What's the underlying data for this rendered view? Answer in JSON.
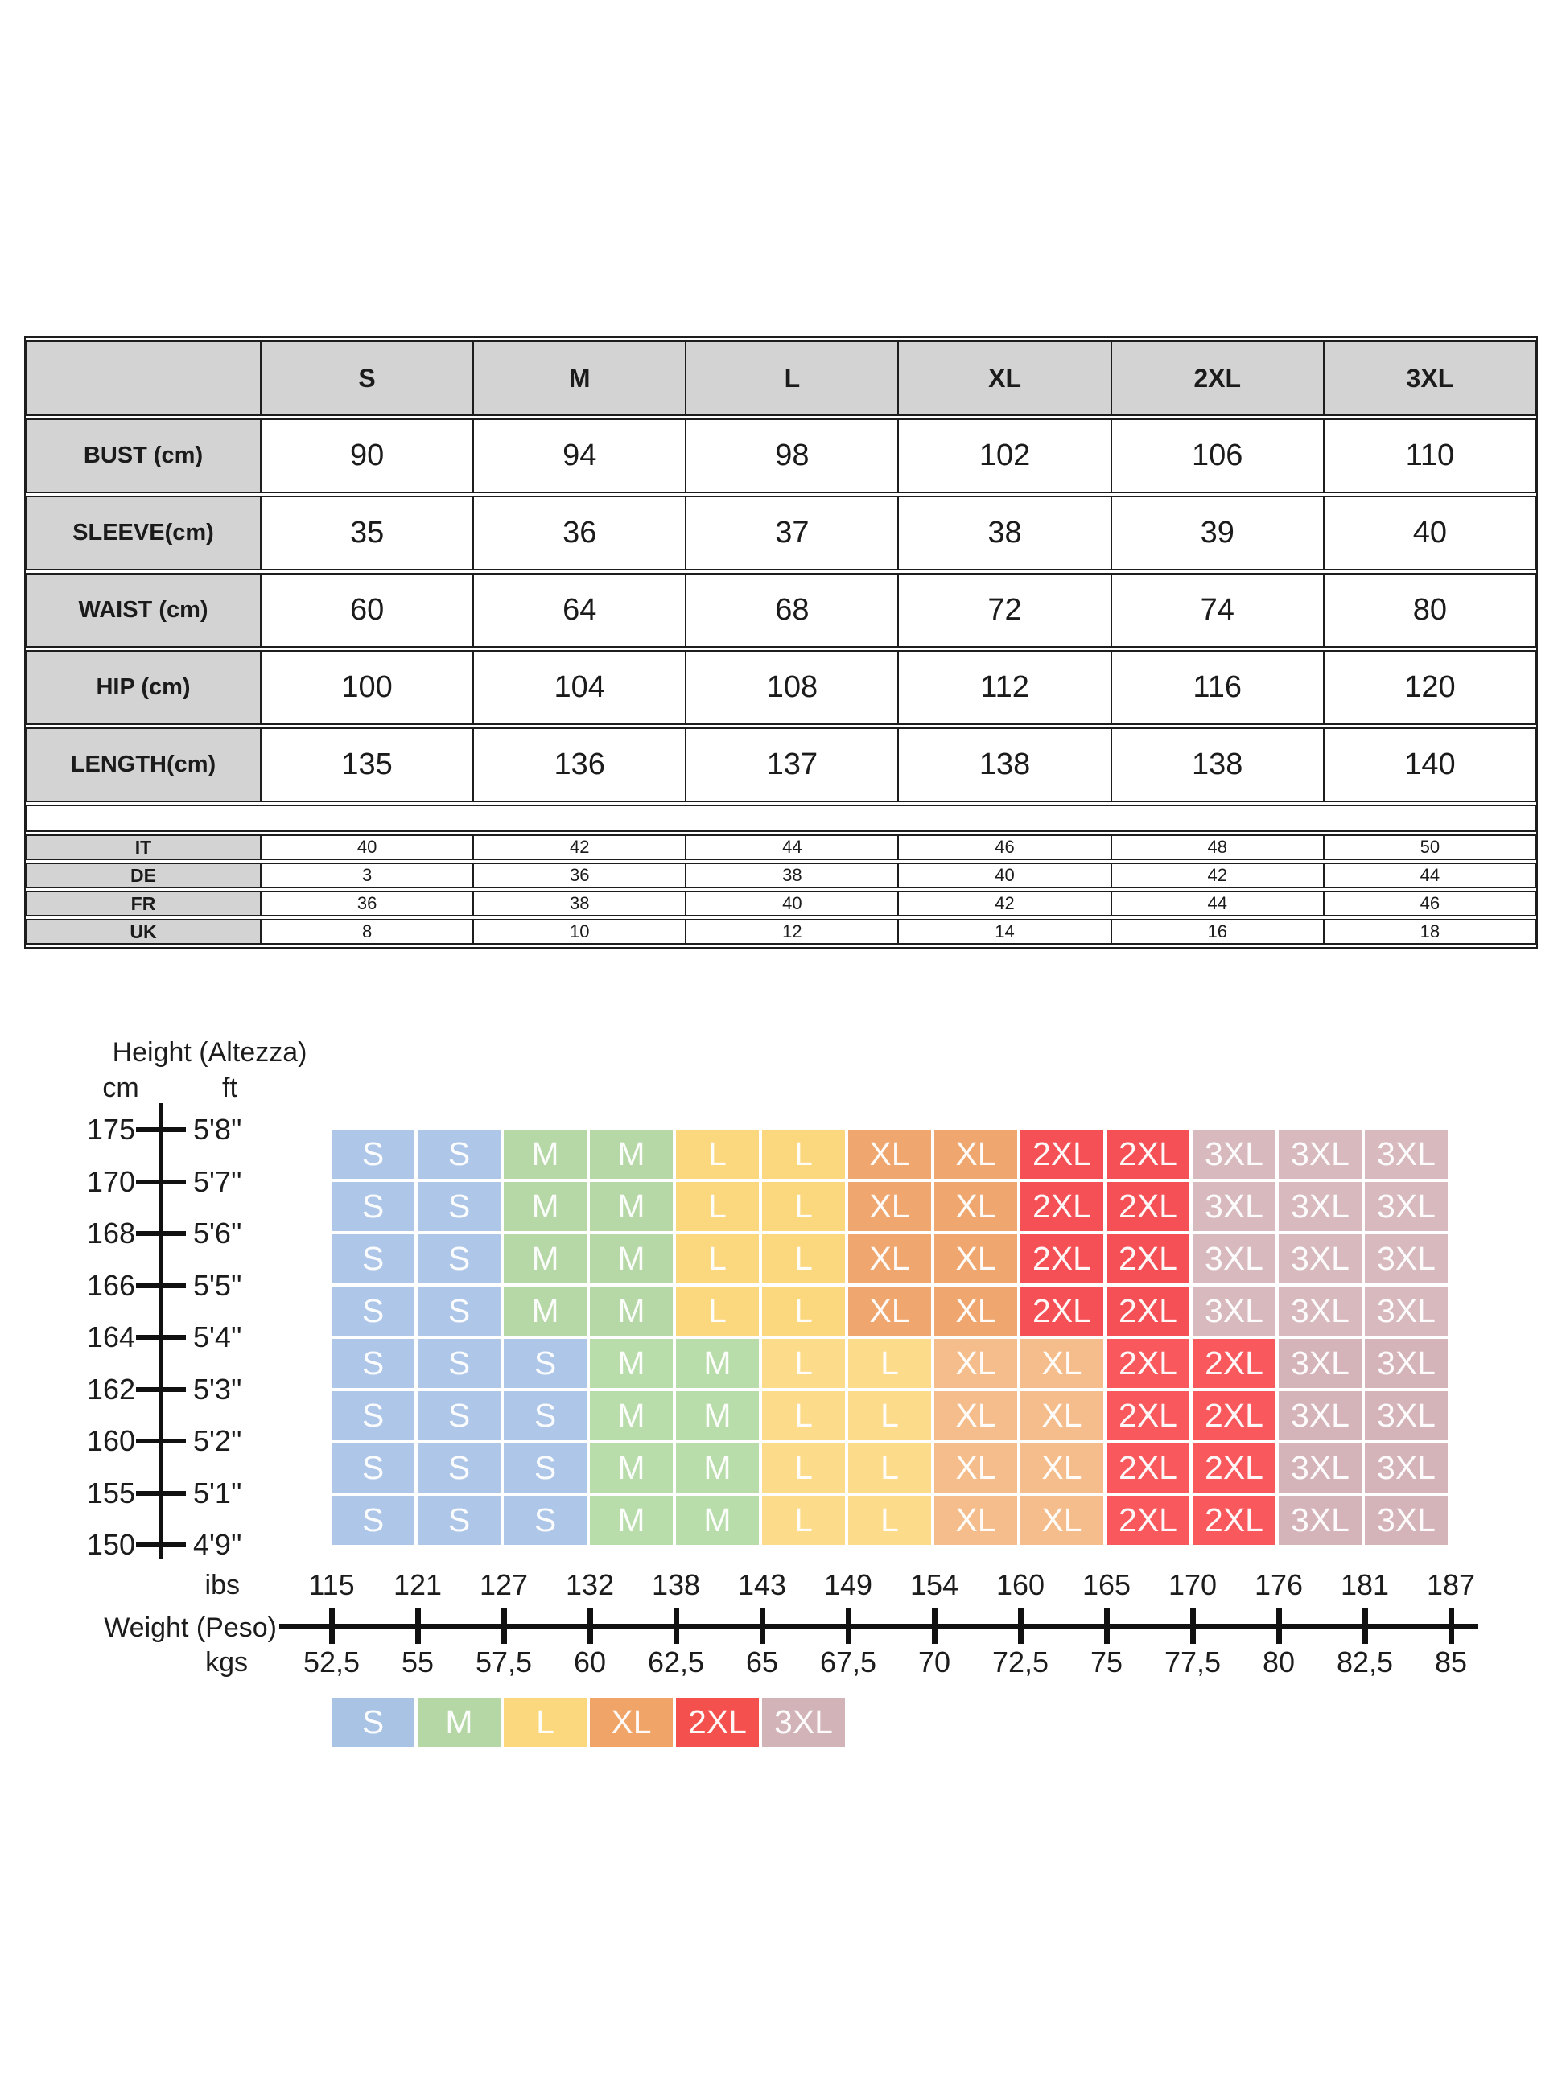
{
  "page": {
    "background": "#FFFFFF"
  },
  "size_table": {
    "header": [
      "",
      "S",
      "M",
      "L",
      "XL",
      "2XL",
      "3XL"
    ],
    "rows": [
      {
        "label": "BUST (cm)",
        "values": [
          "90",
          "94",
          "98",
          "102",
          "106",
          "110"
        ]
      },
      {
        "label": "SLEEVE(cm)",
        "values": [
          "35",
          "36",
          "37",
          "38",
          "39",
          "40"
        ]
      },
      {
        "label": "WAIST (cm)",
        "values": [
          "60",
          "64",
          "68",
          "72",
          "74",
          "80"
        ]
      },
      {
        "label": "HIP (cm)",
        "values": [
          "100",
          "104",
          "108",
          "112",
          "116",
          "120"
        ]
      },
      {
        "label": "LENGTH(cm)",
        "values": [
          "135",
          "136",
          "137",
          "138",
          "138",
          "140"
        ]
      }
    ],
    "conversion_rows": [
      {
        "label": "IT",
        "values": [
          "40",
          "42",
          "44",
          "46",
          "48",
          "50"
        ]
      },
      {
        "label": "DE",
        "values": [
          "3",
          "36",
          "38",
          "40",
          "42",
          "44"
        ]
      },
      {
        "label": "FR",
        "values": [
          "36",
          "38",
          "40",
          "42",
          "44",
          "46"
        ]
      },
      {
        "label": "UK",
        "values": [
          "8",
          "10",
          "12",
          "14",
          "16",
          "18"
        ]
      }
    ],
    "header_bg": "#D3D3D3",
    "border_color": "#1D1D1D"
  },
  "chart_data": {
    "type": "heatmap",
    "title": "",
    "y_axis": {
      "title": "Height (Altezza)",
      "unit_left": "cm",
      "unit_right": "ft",
      "cm": [
        "175",
        "170",
        "168",
        "166",
        "164",
        "162",
        "160",
        "155",
        "150"
      ],
      "ft": [
        "5'8''",
        "5'7''",
        "5'6''",
        "5'5''",
        "5'4''",
        "5'3''",
        "5'2''",
        "5'1''",
        "4'9''"
      ]
    },
    "x_axis": {
      "title": "Weight (Peso)",
      "unit_top": "ibs",
      "unit_bottom": "kgs",
      "lbs": [
        "115",
        "121",
        "127",
        "132",
        "138",
        "143",
        "149",
        "154",
        "160",
        "165",
        "170",
        "176",
        "181",
        "187"
      ],
      "kgs": [
        "52,5",
        "55",
        "57,5",
        "60",
        "62,5",
        "65",
        "67,5",
        "70",
        "72,5",
        "75",
        "77,5",
        "80",
        "82,5",
        "85"
      ]
    },
    "grid_rows": [
      [
        "S",
        "S",
        "M",
        "M",
        "L",
        "L",
        "XL",
        "XL",
        "2XL",
        "2XL",
        "3XL",
        "3XL",
        "3XL"
      ],
      [
        "S",
        "S",
        "M",
        "M",
        "L",
        "L",
        "XL",
        "XL",
        "2XL",
        "2XL",
        "3XL",
        "3XL",
        "3XL"
      ],
      [
        "S",
        "S",
        "M",
        "M",
        "L",
        "L",
        "XL",
        "XL",
        "2XL",
        "2XL",
        "3XL",
        "3XL",
        "3XL"
      ],
      [
        "S",
        "S",
        "M",
        "M",
        "L",
        "L",
        "XL",
        "XL",
        "2XL",
        "2XL",
        "3XL",
        "3XL",
        "3XL"
      ],
      [
        "S",
        "S",
        "S",
        "M",
        "M",
        "L",
        "L",
        "XL",
        "XL",
        "2XL",
        "2XL",
        "3XL",
        "3XL"
      ],
      [
        "S",
        "S",
        "S",
        "M",
        "M",
        "L",
        "L",
        "XL",
        "XL",
        "2XL",
        "2XL",
        "3XL",
        "3XL"
      ],
      [
        "S",
        "S",
        "S",
        "M",
        "M",
        "L",
        "L",
        "XL",
        "XL",
        "2XL",
        "2XL",
        "3XL",
        "3XL"
      ],
      [
        "S",
        "S",
        "S",
        "M",
        "M",
        "L",
        "L",
        "XL",
        "XL",
        "2XL",
        "2XL",
        "3XL",
        "3XL"
      ]
    ],
    "legend": [
      "S",
      "M",
      "L",
      "XL",
      "2XL",
      "3XL"
    ],
    "colors": {
      "upper": {
        "S": "#AEC6E8",
        "M": "#B6D7A6",
        "L": "#FBD77E",
        "XL": "#F0A76F",
        "2XL": "#F45056",
        "3XL": "#D8B9BE"
      },
      "lower": {
        "S": "#AEC6E8",
        "M": "#B9DCAB",
        "L": "#FCDB8B",
        "XL": "#F5BD8B",
        "2XL": "#F9585C",
        "3XL": "#D4B4B9"
      },
      "legend_palette": {
        "S": "#A9C3E5",
        "M": "#B5D7A5",
        "L": "#FBD87D",
        "XL": "#F0A468",
        "2XL": "#F4504E",
        "3XL": "#D2B4B8"
      },
      "axis": "#111111",
      "text": "#1C1C1C",
      "cell_text": "#FFFFFF"
    },
    "layout_hints": {
      "legend_position": "bottom",
      "grid": "off",
      "rows": 8,
      "cols": 13
    }
  }
}
